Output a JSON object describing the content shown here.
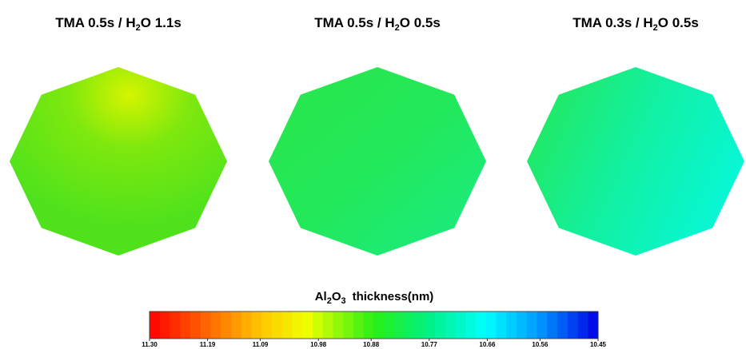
{
  "panels": [
    {
      "title": {
        "text": "TMA 0.5s / H",
        "sub": "2",
        "tail": "O 1.1s"
      }
    },
    {
      "title": {
        "text": "TMA 0.5s / H",
        "sub": "2",
        "tail": "O 0.5s"
      }
    },
    {
      "title": {
        "text": "TMA 0.3s / H",
        "sub": "2",
        "tail": "O 0.5s"
      }
    }
  ],
  "colorbar": {
    "label": {
      "text": "Al",
      "sub1": "2",
      "mid": "O",
      "sub2": "3",
      "tail": "thickness(nm)"
    },
    "clim": [
      11.3,
      10.45
    ],
    "ticks": [
      {
        "value": 11.3,
        "label": "11.30"
      },
      11.19,
      11.09,
      10.98,
      10.88,
      10.77,
      10.66,
      10.56,
      10.45
    ]
  }
}
